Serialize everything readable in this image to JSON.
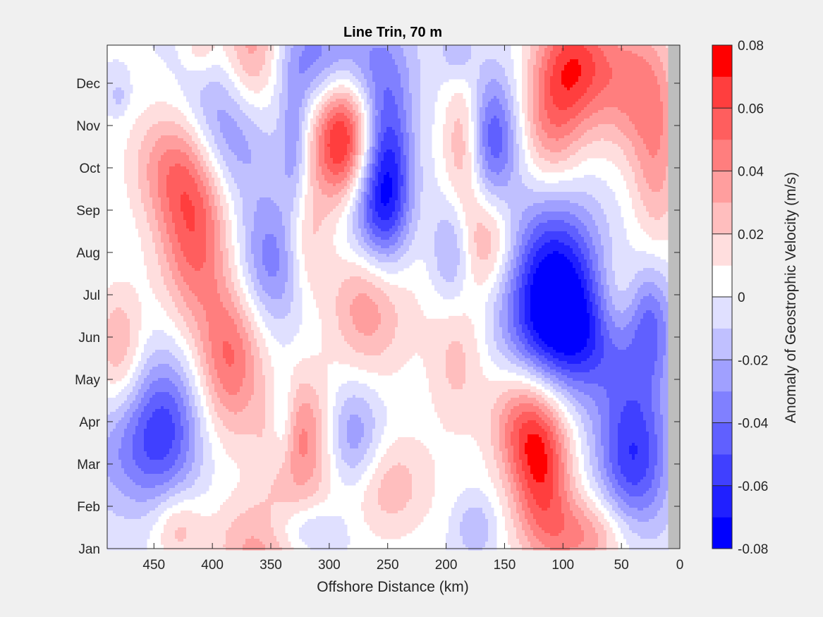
{
  "chart_data": {
    "type": "heatmap",
    "subtype": "filled-contour",
    "title": "Line Trin, 70 m",
    "xlabel": "Offshore Distance (km)",
    "ylabel": "",
    "xlim": [
      490,
      0
    ],
    "x_reversed": true,
    "x_ticks": [
      "450",
      "400",
      "350",
      "300",
      "250",
      "200",
      "150",
      "100",
      "50",
      "0"
    ],
    "x_tick_values": [
      450,
      400,
      350,
      300,
      250,
      200,
      150,
      100,
      50,
      0
    ],
    "y_ticks": [
      "Jan",
      "Feb",
      "Mar",
      "Apr",
      "May",
      "Jun",
      "Jul",
      "Aug",
      "Sep",
      "Oct",
      "Nov",
      "Dec"
    ],
    "colorbar": {
      "label": "Anomaly of Geostrophic Velocity (m/s)",
      "tick_labels": [
        "0.08",
        "0.06",
        "0.04",
        "0.02",
        "0",
        "-0.02",
        "-0.04",
        "-0.06",
        "-0.08"
      ],
      "tick_values": [
        0.08,
        0.06,
        0.04,
        0.02,
        0,
        -0.02,
        -0.04,
        -0.06,
        -0.08
      ],
      "range": [
        -0.08,
        0.08
      ],
      "levels": 16,
      "colors": [
        "#0000ff",
        "#2020ff",
        "#4040ff",
        "#6060ff",
        "#8080ff",
        "#a0a0ff",
        "#c0c0ff",
        "#e0e0ff",
        "#ffffff",
        "#ffdede",
        "#ffbebe",
        "#ff9e9e",
        "#ff7e7e",
        "#ff5e5e",
        "#ff3e3e",
        "#ff0000"
      ]
    },
    "features": [
      {
        "x": 290,
        "month": 9.7,
        "value": 0.08,
        "sx": 18,
        "sy": 1.2
      },
      {
        "x": 265,
        "month": 6.0,
        "value": 0.045,
        "sx": 25,
        "sy": 1.3
      },
      {
        "x": 250,
        "month": 8.8,
        "value": -0.065,
        "sx": 15,
        "sy": 1.6
      },
      {
        "x": 270,
        "month": 7.8,
        "value": -0.04,
        "sx": 20,
        "sy": 1.0
      },
      {
        "x": 108,
        "month": 6.3,
        "value": -0.075,
        "sx": 28,
        "sy": 1.5
      },
      {
        "x": 80,
        "month": 5.0,
        "value": -0.045,
        "sx": 45,
        "sy": 1.0
      },
      {
        "x": 118,
        "month": 2.0,
        "value": 0.065,
        "sx": 18,
        "sy": 1.3
      },
      {
        "x": 140,
        "month": 3.0,
        "value": 0.035,
        "sx": 18,
        "sy": 1.0
      },
      {
        "x": 40,
        "month": 2.2,
        "value": -0.06,
        "sx": 22,
        "sy": 1.4
      },
      {
        "x": 385,
        "month": 4.5,
        "value": 0.05,
        "sx": 20,
        "sy": 1.3
      },
      {
        "x": 325,
        "month": 2.6,
        "value": 0.045,
        "sx": 22,
        "sy": 1.1
      },
      {
        "x": 280,
        "month": 2.5,
        "value": -0.04,
        "sx": 18,
        "sy": 1.0
      },
      {
        "x": 415,
        "month": 7.5,
        "value": 0.055,
        "sx": 22,
        "sy": 1.5
      },
      {
        "x": 435,
        "month": 9.1,
        "value": 0.035,
        "sx": 25,
        "sy": 1.0
      },
      {
        "x": 440,
        "month": 3.0,
        "value": -0.045,
        "sx": 22,
        "sy": 1.2
      },
      {
        "x": 365,
        "month": 11.5,
        "value": 0.055,
        "sx": 20,
        "sy": 1.2
      },
      {
        "x": 300,
        "month": 11.5,
        "value": -0.045,
        "sx": 40,
        "sy": 0.9
      },
      {
        "x": 385,
        "month": 10.0,
        "value": -0.045,
        "sx": 28,
        "sy": 1.2
      },
      {
        "x": 345,
        "month": 6.8,
        "value": -0.04,
        "sx": 25,
        "sy": 1.1
      },
      {
        "x": 90,
        "month": 11.5,
        "value": 0.055,
        "sx": 22,
        "sy": 1.0
      },
      {
        "x": 40,
        "month": 11.0,
        "value": 0.04,
        "sx": 25,
        "sy": 1.2
      },
      {
        "x": 110,
        "month": 10.0,
        "value": 0.04,
        "sx": 20,
        "sy": 1.2
      },
      {
        "x": 185,
        "month": 9.6,
        "value": 0.035,
        "sx": 12,
        "sy": 1.1
      },
      {
        "x": 160,
        "month": 9.7,
        "value": -0.05,
        "sx": 16,
        "sy": 1.1
      },
      {
        "x": 165,
        "month": 7.3,
        "value": 0.035,
        "sx": 18,
        "sy": 0.9
      },
      {
        "x": 195,
        "month": 7.0,
        "value": -0.03,
        "sx": 12,
        "sy": 0.9
      },
      {
        "x": 320,
        "month": 7.1,
        "value": 0.035,
        "sx": 14,
        "sy": 1.0
      },
      {
        "x": 255,
        "month": 1.5,
        "value": 0.03,
        "sx": 30,
        "sy": 0.9
      },
      {
        "x": 355,
        "month": 0.1,
        "value": 0.04,
        "sx": 30,
        "sy": 0.8
      },
      {
        "x": 325,
        "month": 0.4,
        "value": -0.03,
        "sx": 25,
        "sy": 0.5
      },
      {
        "x": 190,
        "month": 4.5,
        "value": 0.025,
        "sx": 18,
        "sy": 1.2
      },
      {
        "x": 480,
        "month": 4.8,
        "value": 0.03,
        "sx": 15,
        "sy": 1.0
      },
      {
        "x": 470,
        "month": 2.2,
        "value": -0.025,
        "sx": 30,
        "sy": 1.0
      },
      {
        "x": 430,
        "month": 0.5,
        "value": 0.025,
        "sx": 15,
        "sy": 0.6
      },
      {
        "x": 20,
        "month": 9.0,
        "value": 0.03,
        "sx": 15,
        "sy": 1.5
      },
      {
        "x": 55,
        "month": 5.7,
        "value": 0.025,
        "sx": 15,
        "sy": 0.9
      },
      {
        "x": 25,
        "month": 5.5,
        "value": -0.025,
        "sx": 12,
        "sy": 1.0
      },
      {
        "x": 80,
        "month": 0.3,
        "value": 0.04,
        "sx": 30,
        "sy": 0.7
      },
      {
        "x": 220,
        "month": 10.0,
        "value": 0.0,
        "sx": 10,
        "sy": 1.0
      },
      {
        "x": 190,
        "month": 11.8,
        "value": -0.02,
        "sx": 10,
        "sy": 0.5
      },
      {
        "x": 175,
        "month": 0.5,
        "value": -0.02,
        "sx": 12,
        "sy": 0.5
      },
      {
        "x": 340,
        "month": 3.0,
        "value": -0.03,
        "sx": 8,
        "sy": 0.8
      },
      {
        "x": 410,
        "month": 11.9,
        "value": 0.02,
        "sx": 10,
        "sy": 0.5
      },
      {
        "x": 330,
        "month": 9.5,
        "value": -0.025,
        "sx": 8,
        "sy": 1.0
      },
      {
        "x": 480,
        "month": 10.7,
        "value": -0.015,
        "sx": 6,
        "sy": 0.3
      }
    ]
  }
}
